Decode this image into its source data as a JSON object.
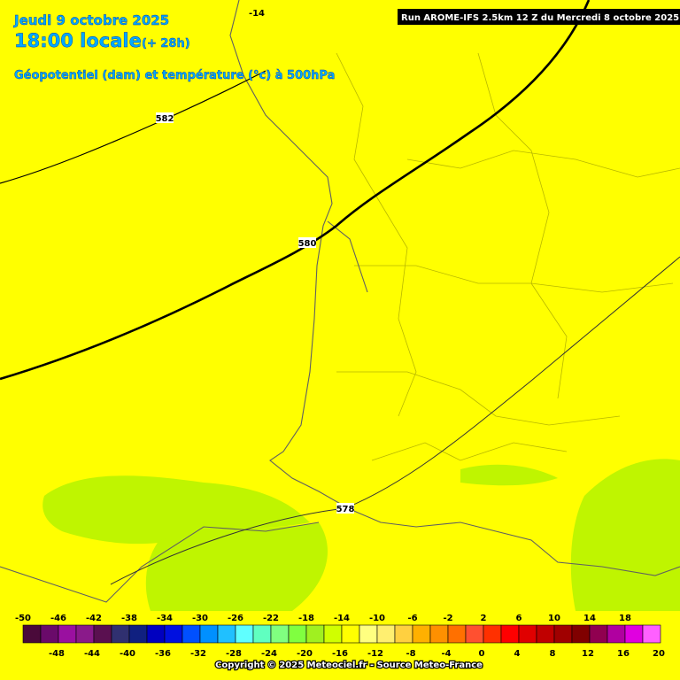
{
  "header": {
    "date": "Jeudi 9 octobre 2025",
    "time": "18:00 locale",
    "lead": "(+ 28h)",
    "product": "Géopotentiel (dam) et température (°c) à 500hPa",
    "run": "Run AROME-IFS 2.5km 12 Z du Mercredi 8 octobre 2025"
  },
  "contours": [
    {
      "label": 582
    },
    {
      "label": 580
    },
    {
      "label": 578
    }
  ],
  "isotherm_label": -14,
  "colorbar": {
    "labels": [
      -50,
      -48,
      -46,
      -44,
      -42,
      -40,
      -38,
      -36,
      -34,
      -32,
      -30,
      -28,
      -26,
      -24,
      -22,
      -20,
      -18,
      -16,
      -14,
      -12,
      -10,
      -8,
      -6,
      -4,
      -2,
      0,
      2,
      4,
      6,
      8,
      10,
      12,
      14,
      16,
      18,
      20
    ],
    "colors": [
      "#4a0a3a",
      "#6a0a6a",
      "#9a10a0",
      "#8a1a8a",
      "#5a1050",
      "#303070",
      "#102080",
      "#0000c0",
      "#0010e0",
      "#0050ff",
      "#0090ff",
      "#20c0ff",
      "#60ffff",
      "#60ffc0",
      "#80ff80",
      "#80ff40",
      "#a0f020",
      "#d0ff00",
      "#ffff00",
      "#ffff80",
      "#ffef70",
      "#ffd040",
      "#ffb000",
      "#ff9000",
      "#ff7000",
      "#ff5030",
      "#ff3000",
      "#ff0000",
      "#e00000",
      "#c00000",
      "#a00000",
      "#800000",
      "#900050",
      "#b000a0",
      "#e000e0",
      "#ff60ff"
    ]
  },
  "footer": "Copyright © 2025 Meteociel.fr - Source Meteo-France"
}
